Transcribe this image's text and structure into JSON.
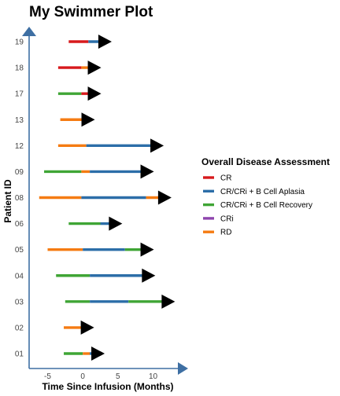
{
  "chart_data": {
    "type": "swimmer",
    "title": "My Swimmer Plot",
    "xlabel": "Time Since Infusion (Months)",
    "ylabel": "Patient ID",
    "xlim": [
      -8.5,
      13.5
    ],
    "x_ticks": [
      -5,
      0,
      5,
      10
    ],
    "legend_title": "Overall Disease Assessment",
    "legend_position": "right",
    "categories_colors": {
      "CR": "#d7191c",
      "CR/CRi + B Cell Aplasia": "#2c6ea8",
      "CR/CRi + B Cell Recovery": "#3fa535",
      "CRi": "#8e44ad",
      "RD": "#f57b12"
    },
    "legend": [
      {
        "label": "CR",
        "color": "#d7191c"
      },
      {
        "label": "CR/CRi + B Cell Aplasia",
        "color": "#2c6ea8"
      },
      {
        "label": "CR/CRi + B Cell Recovery",
        "color": "#3fa535"
      },
      {
        "label": "CRi",
        "color": "#8e44ad"
      },
      {
        "label": "RD",
        "color": "#f57b12"
      }
    ],
    "patients": [
      {
        "id": "19",
        "segments": [
          {
            "from": -2.0,
            "to": 0.8,
            "status": "CR"
          },
          {
            "from": 0.8,
            "to": 3.0,
            "status": "CR/CRi + B Cell Aplasia"
          }
        ],
        "arrow_at": 3.0
      },
      {
        "id": "18",
        "segments": [
          {
            "from": -3.5,
            "to": -0.2,
            "status": "CR"
          },
          {
            "from": -0.2,
            "to": 1.5,
            "status": "RD"
          }
        ],
        "arrow_at": 1.5
      },
      {
        "id": "17",
        "segments": [
          {
            "from": -3.5,
            "to": -0.2,
            "status": "CR/CRi + B Cell Recovery"
          },
          {
            "from": -0.2,
            "to": 1.5,
            "status": "CR"
          }
        ],
        "arrow_at": 1.5
      },
      {
        "id": "13",
        "segments": [
          {
            "from": -3.2,
            "to": 0.6,
            "status": "RD"
          }
        ],
        "arrow_at": 0.6
      },
      {
        "id": "12",
        "segments": [
          {
            "from": -3.5,
            "to": 0.5,
            "status": "RD"
          },
          {
            "from": 0.5,
            "to": 10.4,
            "status": "CR/CRi + B Cell Aplasia"
          }
        ],
        "arrow_at": 10.4
      },
      {
        "id": "09",
        "segments": [
          {
            "from": -5.5,
            "to": -0.2,
            "status": "CR/CRi + B Cell Recovery"
          },
          {
            "from": -0.2,
            "to": 1.0,
            "status": "RD"
          },
          {
            "from": 1.0,
            "to": 9.0,
            "status": "CR/CRi + B Cell Aplasia"
          }
        ],
        "arrow_at": 9.0
      },
      {
        "id": "08",
        "segments": [
          {
            "from": -6.2,
            "to": -0.2,
            "status": "RD"
          },
          {
            "from": -0.2,
            "to": 9.0,
            "status": "CR/CRi + B Cell Aplasia"
          },
          {
            "from": 9.0,
            "to": 11.5,
            "status": "RD"
          }
        ],
        "arrow_at": 11.5
      },
      {
        "id": "06",
        "segments": [
          {
            "from": -2.0,
            "to": 2.5,
            "status": "CR/CRi + B Cell Recovery"
          },
          {
            "from": 2.5,
            "to": 4.0,
            "status": "CR/CRi + B Cell Aplasia"
          },
          {
            "from": 4.0,
            "to": 4.5,
            "status": "CR/CRi + B Cell Recovery"
          }
        ],
        "arrow_at": 4.5
      },
      {
        "id": "05",
        "segments": [
          {
            "from": -5.0,
            "to": 0.0,
            "status": "RD"
          },
          {
            "from": 0.0,
            "to": 6.0,
            "status": "CR/CRi + B Cell Aplasia"
          },
          {
            "from": 6.0,
            "to": 9.0,
            "status": "CR/CRi + B Cell Recovery"
          }
        ],
        "arrow_at": 9.0
      },
      {
        "id": "04",
        "segments": [
          {
            "from": -3.8,
            "to": 1.0,
            "status": "CR/CRi + B Cell Recovery"
          },
          {
            "from": 1.0,
            "to": 9.2,
            "status": "CR/CRi + B Cell Aplasia"
          }
        ],
        "arrow_at": 9.2
      },
      {
        "id": "03",
        "segments": [
          {
            "from": -2.5,
            "to": 1.0,
            "status": "CR/CRi + B Cell Recovery"
          },
          {
            "from": 1.0,
            "to": 6.5,
            "status": "CR/CRi + B Cell Aplasia"
          },
          {
            "from": 6.5,
            "to": 12.0,
            "status": "CR/CRi + B Cell Recovery"
          }
        ],
        "arrow_at": 12.0
      },
      {
        "id": "02",
        "segments": [
          {
            "from": -2.7,
            "to": 0.5,
            "status": "RD"
          }
        ],
        "arrow_at": 0.5
      },
      {
        "id": "01",
        "segments": [
          {
            "from": -2.7,
            "to": 0.0,
            "status": "CR/CRi + B Cell Recovery"
          },
          {
            "from": 0.0,
            "to": 1.0,
            "status": "RD"
          },
          {
            "from": 1.0,
            "to": 2.0,
            "status": "CR/CRi + B Cell Aplasia"
          }
        ],
        "arrow_at": 2.0
      }
    ]
  },
  "colors": {
    "axis": "#3e6fa3",
    "arrow": "#000000"
  }
}
